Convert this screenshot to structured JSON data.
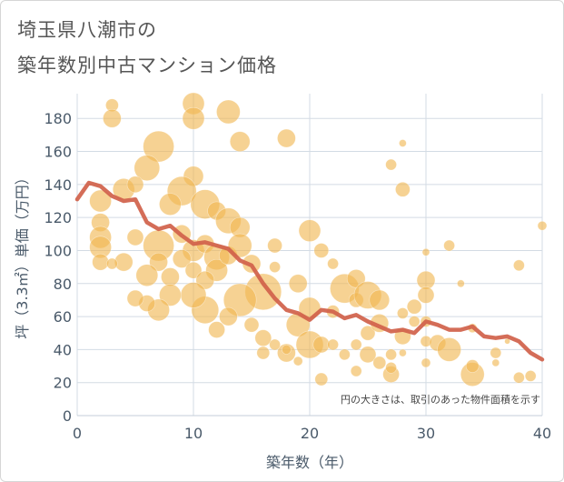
{
  "titles": {
    "line1": "埼玉県八潮市の",
    "line2": "築年数別中古マンション価格"
  },
  "chart_data": {
    "type": "scatter",
    "title": "埼玉県八潮市の築年数別中古マンション価格",
    "xlabel": "築年数（年）",
    "ylabel": "坪（3.3㎡）単価（万円）",
    "xlim": [
      0,
      40
    ],
    "ylim": [
      0,
      195
    ],
    "xticks": [
      0,
      10,
      20,
      30,
      40
    ],
    "yticks": [
      0,
      20,
      40,
      60,
      80,
      100,
      120,
      140,
      160,
      180
    ],
    "grid": true,
    "annotation": "円の大きさは、取引のあった物件面積を示す",
    "colors": {
      "bubble": "#f0b750",
      "line": "#d0614a",
      "grid": "#d3dbe4"
    },
    "series": [
      {
        "kind": "line",
        "x": [
          0,
          1,
          2,
          3,
          4,
          5,
          6,
          7,
          8,
          9,
          10,
          11,
          12,
          13,
          14,
          15,
          16,
          17,
          18,
          19,
          20,
          21,
          22,
          23,
          24,
          25,
          26,
          27,
          28,
          29,
          30,
          31,
          32,
          33,
          34,
          35,
          36,
          37,
          38,
          39,
          40
        ],
        "values": [
          131,
          141,
          139,
          133,
          130,
          131,
          117,
          113,
          115,
          109,
          104,
          105,
          103,
          101,
          94,
          91,
          80,
          71,
          64,
          62,
          58,
          64,
          63,
          59,
          61,
          57,
          54,
          51,
          52,
          50,
          57,
          55,
          52,
          52,
          54,
          48,
          47,
          48,
          45,
          38,
          34
        ]
      },
      {
        "kind": "bubble",
        "points": [
          [
            3,
            188,
            7
          ],
          [
            3,
            180,
            10
          ],
          [
            10,
            189,
            12
          ],
          [
            10,
            180,
            12
          ],
          [
            13,
            184,
            13
          ],
          [
            7,
            163,
            17
          ],
          [
            14,
            166,
            11
          ],
          [
            18,
            168,
            10
          ],
          [
            28,
            165,
            4
          ],
          [
            27,
            152,
            6
          ],
          [
            28,
            137,
            8
          ],
          [
            6,
            150,
            14
          ],
          [
            10,
            145,
            11
          ],
          [
            9,
            136,
            16
          ],
          [
            11,
            128,
            16
          ],
          [
            4,
            137,
            12
          ],
          [
            2,
            130,
            12
          ],
          [
            5,
            140,
            9
          ],
          [
            8,
            128,
            12
          ],
          [
            12,
            124,
            10
          ],
          [
            13,
            118,
            14
          ],
          [
            14,
            114,
            11
          ],
          [
            2,
            117,
            10
          ],
          [
            2,
            108,
            12
          ],
          [
            2,
            102,
            12
          ],
          [
            5,
            108,
            9
          ],
          [
            7,
            103,
            17
          ],
          [
            9,
            110,
            10
          ],
          [
            10,
            100,
            12
          ],
          [
            11,
            104,
            10
          ],
          [
            12,
            96,
            14
          ],
          [
            12,
            88,
            12
          ],
          [
            9,
            95,
            10
          ],
          [
            7,
            93,
            10
          ],
          [
            4,
            93,
            10
          ],
          [
            2,
            93,
            9
          ],
          [
            3,
            92,
            6
          ],
          [
            6,
            85,
            12
          ],
          [
            8,
            84,
            10
          ],
          [
            10,
            88,
            9
          ],
          [
            11,
            82,
            10
          ],
          [
            13,
            97,
            10
          ],
          [
            14,
            103,
            13
          ],
          [
            15,
            92,
            10
          ],
          [
            16,
            75,
            20
          ],
          [
            14,
            70,
            18
          ],
          [
            11,
            64,
            15
          ],
          [
            10,
            73,
            14
          ],
          [
            8,
            73,
            12
          ],
          [
            7,
            64,
            12
          ],
          [
            6,
            68,
            9
          ],
          [
            5,
            71,
            9
          ],
          [
            12,
            52,
            9
          ],
          [
            13,
            60,
            10
          ],
          [
            15,
            55,
            8
          ],
          [
            17,
            90,
            6
          ],
          [
            17,
            103,
            8
          ],
          [
            20,
            112,
            12
          ],
          [
            19,
            80,
            10
          ],
          [
            20,
            65,
            12
          ],
          [
            19,
            55,
            13
          ],
          [
            20,
            43,
            15
          ],
          [
            21,
            43,
            9
          ],
          [
            18,
            38,
            10
          ],
          [
            19,
            33,
            5
          ],
          [
            16,
            47,
            9
          ],
          [
            16,
            38,
            7
          ],
          [
            17,
            43,
            6
          ],
          [
            21,
            22,
            7
          ],
          [
            22,
            43,
            6
          ],
          [
            22,
            63,
            7
          ],
          [
            23,
            77,
            16
          ],
          [
            24,
            83,
            10
          ],
          [
            24,
            70,
            8
          ],
          [
            25,
            73,
            15
          ],
          [
            26,
            70,
            11
          ],
          [
            25,
            50,
            8
          ],
          [
            26,
            56,
            10
          ],
          [
            24,
            43,
            6
          ],
          [
            25,
            37,
            9
          ],
          [
            23,
            37,
            6
          ],
          [
            24,
            27,
            6
          ],
          [
            26,
            32,
            7
          ],
          [
            27,
            25,
            9
          ],
          [
            27,
            29,
            6
          ],
          [
            28,
            48,
            9
          ],
          [
            28,
            62,
            6
          ],
          [
            29,
            57,
            6
          ],
          [
            29,
            66,
            8
          ],
          [
            30,
            82,
            10
          ],
          [
            30,
            73,
            9
          ],
          [
            30,
            57,
            6
          ],
          [
            30,
            45,
            6
          ],
          [
            31,
            44,
            9
          ],
          [
            32,
            40,
            13
          ],
          [
            32,
            103,
            6
          ],
          [
            30,
            99,
            4
          ],
          [
            33,
            80,
            4
          ],
          [
            34,
            53,
            5
          ],
          [
            34,
            25,
            13
          ],
          [
            34,
            30,
            7
          ],
          [
            36,
            38,
            6
          ],
          [
            36,
            32,
            4
          ],
          [
            37,
            45,
            3
          ],
          [
            38,
            91,
            6
          ],
          [
            38,
            23,
            6
          ],
          [
            39,
            24,
            6
          ],
          [
            40,
            115,
            5
          ],
          [
            21,
            100,
            8
          ],
          [
            22,
            92,
            6
          ],
          [
            27,
            37,
            6
          ],
          [
            28,
            38,
            4
          ],
          [
            30,
            32,
            5
          ],
          [
            18,
            40,
            5
          ]
        ]
      }
    ]
  }
}
